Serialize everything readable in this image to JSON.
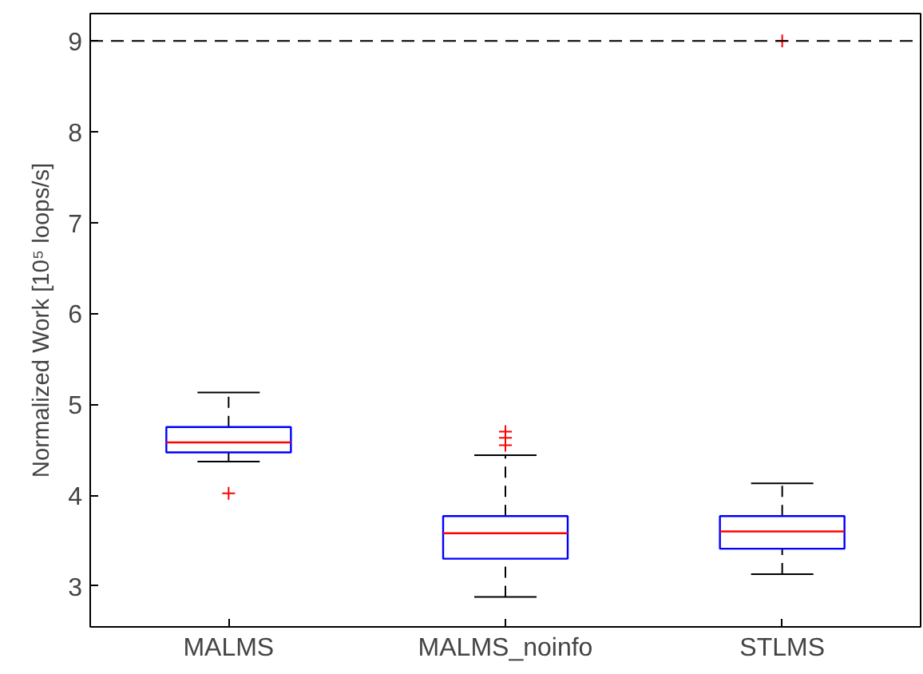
{
  "chart_data": {
    "type": "box",
    "ylabel": "Normalized Work [10⁵ loops/s]",
    "categories": [
      "MALMS",
      "MALMS_noinfo",
      "STLMS"
    ],
    "series": [
      {
        "color": "#0000ff",
        "boxes": [
          {
            "low": 4.37,
            "q1": 4.47,
            "median": 4.58,
            "q3": 4.75,
            "high": 5.13,
            "outliers": [
              4.02
            ]
          },
          {
            "low": 2.88,
            "q1": 3.3,
            "median": 3.58,
            "q3": 3.77,
            "high": 4.44,
            "outliers": [
              4.7,
              4.63,
              4.55
            ]
          },
          {
            "low": 3.13,
            "q1": 3.41,
            "median": 3.6,
            "q3": 3.77,
            "high": 4.13,
            "outliers": [
              9.0
            ]
          }
        ]
      }
    ],
    "ylim": [
      2.55,
      9.3
    ],
    "yticks": [
      3,
      4,
      5,
      6,
      7,
      8,
      9
    ],
    "ref_lines": [
      {
        "axis": "y",
        "value": 9,
        "color": "#000000",
        "line_style": "dashed"
      }
    ],
    "marker": "cross",
    "grid": false
  }
}
